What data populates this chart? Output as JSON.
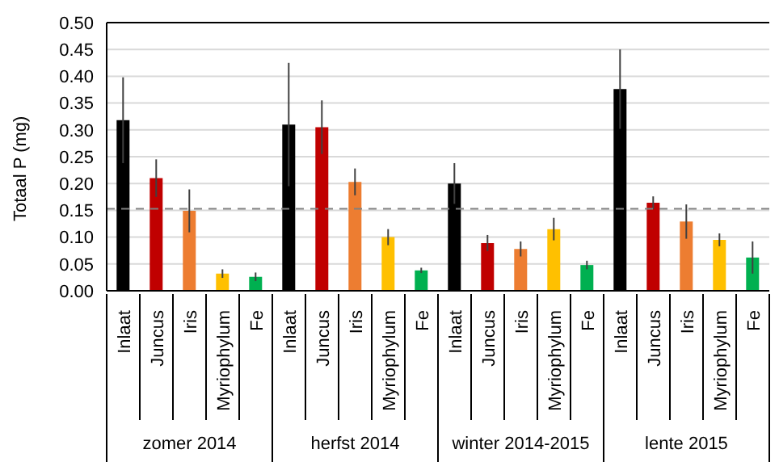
{
  "chart_data": {
    "type": "bar",
    "ylabel": "Totaal P (mg)",
    "categories": [
      "Inlaat",
      "Juncus",
      "Iris",
      "Myriophylum",
      "Fe",
      "Inlaat",
      "Juncus",
      "Iris",
      "Myriophylum",
      "Fe",
      "Inlaat",
      "Juncus",
      "Iris",
      "Myriophylum",
      "Fe",
      "Inlaat",
      "Juncus",
      "Iris",
      "Myriophylum",
      "Fe"
    ],
    "values": [
      0.318,
      0.21,
      0.149,
      0.032,
      0.026,
      0.31,
      0.305,
      0.203,
      0.1,
      0.038,
      0.2,
      0.089,
      0.078,
      0.115,
      0.048,
      0.376,
      0.164,
      0.129,
      0.095,
      0.062
    ],
    "errors": [
      0.08,
      0.035,
      0.04,
      0.008,
      0.008,
      0.115,
      0.05,
      0.025,
      0.015,
      0.005,
      0.038,
      0.015,
      0.014,
      0.021,
      0.008,
      0.074,
      0.012,
      0.032,
      0.012,
      0.03
    ],
    "colors": [
      "#000000",
      "#c00000",
      "#ed7d31",
      "#ffc000",
      "#00b050",
      "#000000",
      "#c00000",
      "#ed7d31",
      "#ffc000",
      "#00b050",
      "#000000",
      "#c00000",
      "#ed7d31",
      "#ffc000",
      "#00b050",
      "#000000",
      "#c00000",
      "#ed7d31",
      "#ffc000",
      "#00b050"
    ],
    "ylim": [
      0,
      0.5
    ],
    "yticks": [
      {
        "value": 0,
        "label": "0.00"
      },
      {
        "value": 0.05,
        "label": "0.05"
      },
      {
        "value": 0.1,
        "label": "0.10"
      },
      {
        "value": 0.15,
        "label": "0.15"
      },
      {
        "value": 0.2,
        "label": "0.20"
      },
      {
        "value": 0.25,
        "label": "0.25"
      },
      {
        "value": 0.3,
        "label": "0.30"
      },
      {
        "value": 0.35,
        "label": "0.35"
      },
      {
        "value": 0.4,
        "label": "0.40"
      },
      {
        "value": 0.45,
        "label": "0.45"
      },
      {
        "value": 0.5,
        "label": "0.50"
      }
    ],
    "grid": "y",
    "legend": false,
    "ref_lines": [
      {
        "axis": "y",
        "value": 0.153,
        "color": "#808080",
        "line_style": "dashed"
      }
    ],
    "annotations": [
      "zomer 2014",
      "herfst 2014",
      "winter 2014-2015",
      "lente 2015"
    ]
  }
}
